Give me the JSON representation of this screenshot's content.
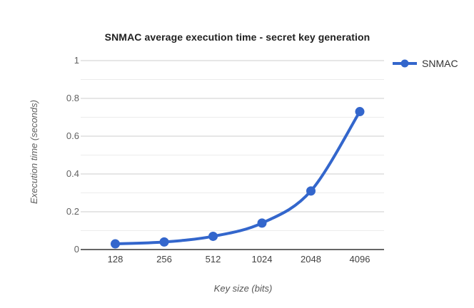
{
  "chart_data": {
    "type": "line",
    "title": "SNMAC average execution time - secret key generation",
    "xlabel": "Key size (bits)",
    "ylabel": "Execution time (seconds)",
    "categories": [
      "128",
      "256",
      "512",
      "1024",
      "2048",
      "4096"
    ],
    "series": [
      {
        "name": "SNMAC",
        "values": [
          0.03,
          0.04,
          0.07,
          0.14,
          0.31,
          0.73
        ]
      }
    ],
    "ylim": [
      0,
      1
    ],
    "y_tick_labels": [
      "0",
      "0.2",
      "0.4",
      "0.6",
      "0.8",
      "1"
    ],
    "y_major_interval": 0.2,
    "y_minor_interval": 0.1,
    "grid": true,
    "line_smooth": true,
    "legend_position": "top-right"
  },
  "colors": {
    "series": "#3366cc",
    "major_gridline": "#cccccc",
    "minor_gridline": "#ececec",
    "axis_line": "#333333",
    "background": "#ffffff"
  }
}
